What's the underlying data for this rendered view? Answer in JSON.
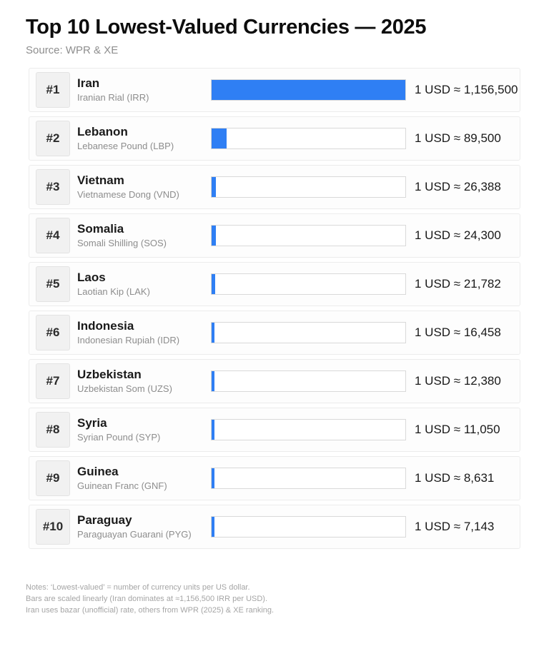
{
  "title": "Top 10 Lowest-Valued Currencies — 2025",
  "source": "Source: WPR & XE",
  "colors": {
    "bar_fill": "#2f7ff4",
    "bar_track_border": "#d9d9d9",
    "row_border": "#ececec",
    "badge_bg": "#f1f1f1"
  },
  "chart_data": {
    "type": "bar",
    "orientation": "horizontal",
    "title": "Top 10 Lowest-Valued Currencies — 2025",
    "subtitle": "Source: WPR & XE",
    "value_unit": "currency units per 1 USD",
    "scale": "linear",
    "xlim": [
      0,
      1156500
    ],
    "grid": false,
    "legend": false,
    "categories": [
      "Iran",
      "Lebanon",
      "Vietnam",
      "Somalia",
      "Laos",
      "Indonesia",
      "Uzbekistan",
      "Syria",
      "Guinea",
      "Paraguay"
    ],
    "values": [
      1156500,
      89500,
      26388,
      24300,
      21782,
      16458,
      12380,
      11050,
      8631,
      7143
    ],
    "rows": [
      {
        "rank": "#1",
        "country": "Iran",
        "currency": "Iranian Rial (IRR)",
        "value": 1156500,
        "rate_label": "1 USD ≈ 1,156,500"
      },
      {
        "rank": "#2",
        "country": "Lebanon",
        "currency": "Lebanese Pound (LBP)",
        "value": 89500,
        "rate_label": "1 USD ≈ 89,500"
      },
      {
        "rank": "#3",
        "country": "Vietnam",
        "currency": "Vietnamese Dong (VND)",
        "value": 26388,
        "rate_label": "1 USD ≈ 26,388"
      },
      {
        "rank": "#4",
        "country": "Somalia",
        "currency": "Somali Shilling (SOS)",
        "value": 24300,
        "rate_label": "1 USD ≈ 24,300"
      },
      {
        "rank": "#5",
        "country": "Laos",
        "currency": "Laotian Kip (LAK)",
        "value": 21782,
        "rate_label": "1 USD ≈ 21,782"
      },
      {
        "rank": "#6",
        "country": "Indonesia",
        "currency": "Indonesian Rupiah (IDR)",
        "value": 16458,
        "rate_label": "1 USD ≈ 16,458"
      },
      {
        "rank": "#7",
        "country": "Uzbekistan",
        "currency": "Uzbekistan Som (UZS)",
        "value": 12380,
        "rate_label": "1 USD ≈ 12,380"
      },
      {
        "rank": "#8",
        "country": "Syria",
        "currency": "Syrian Pound (SYP)",
        "value": 11050,
        "rate_label": "1 USD ≈ 11,050"
      },
      {
        "rank": "#9",
        "country": "Guinea",
        "currency": "Guinean Franc (GNF)",
        "value": 8631,
        "rate_label": "1 USD ≈ 8,631"
      },
      {
        "rank": "#10",
        "country": "Paraguay",
        "currency": "Paraguayan Guarani (PYG)",
        "value": 7143,
        "rate_label": "1 USD ≈ 7,143"
      }
    ]
  },
  "notes": [
    "Notes: ‘Lowest-valued’ = number of currency units per US dollar.",
    "Bars are scaled linearly (Iran dominates at ≈1,156,500 IRR per USD).",
    "Iran uses bazar (unofficial) rate, others from WPR (2025) & XE ranking."
  ]
}
